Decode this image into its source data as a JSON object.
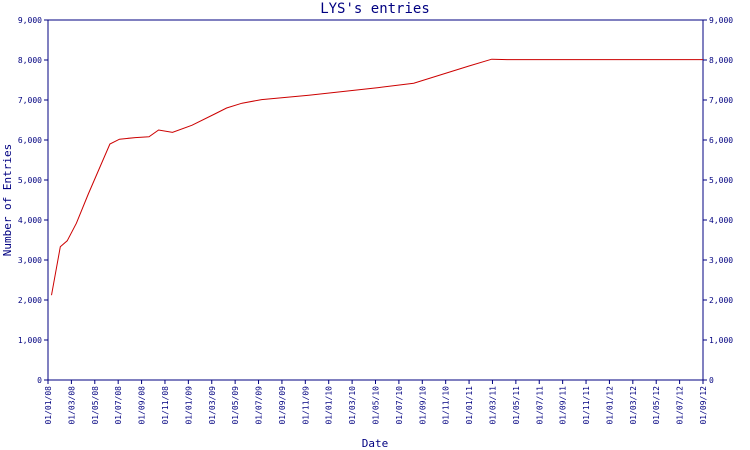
{
  "chart_data": {
    "type": "line",
    "title": "LYS's entries",
    "xlabel": "Date",
    "ylabel": "Number of Entries",
    "x_tick_labels": [
      "01/01/08",
      "01/03/08",
      "01/05/08",
      "01/07/08",
      "01/09/08",
      "01/11/08",
      "01/01/09",
      "01/03/09",
      "01/05/09",
      "01/07/09",
      "01/09/09",
      "01/11/09",
      "01/01/10",
      "01/03/10",
      "01/05/10",
      "01/07/10",
      "01/09/10",
      "01/11/10",
      "01/01/11",
      "01/03/11",
      "01/05/11",
      "01/07/11",
      "01/09/11",
      "01/11/11",
      "01/01/12",
      "01/03/12",
      "01/05/12",
      "01/07/12",
      "01/09/12"
    ],
    "y_tick_labels": [
      "0",
      "1,000",
      "2,000",
      "3,000",
      "4,000",
      "5,000",
      "6,000",
      "7,000",
      "8,000",
      "9,000"
    ],
    "y_tick_labels_right": [
      "0",
      "1,000",
      "2,000",
      "3,000",
      "4,000",
      "5,000",
      "6,000",
      "7,000",
      "8,000",
      "9,000"
    ],
    "ylim": [
      0,
      9000
    ],
    "xlim": [
      "2008-01-01",
      "2012-09-01"
    ],
    "grid": false,
    "line_color": "#cc0000",
    "axis_color": "#000080",
    "series": [
      {
        "x": [
          "2008-01-10",
          "2008-02-02",
          "2008-02-20",
          "2008-03-15",
          "2008-04-15",
          "2008-06-10",
          "2008-07-05",
          "2008-08-15",
          "2008-09-20",
          "2008-10-15",
          "2008-11-20",
          "2009-01-10",
          "2009-03-10",
          "2009-04-10",
          "2009-05-20",
          "2009-07-10",
          "2009-11-10",
          "2010-05-10",
          "2010-08-10",
          "2011-01-01",
          "2011-03-01",
          "2011-04-10",
          "2011-09-01",
          "2012-01-01",
          "2012-09-01"
        ],
        "y": [
          2120,
          3330,
          3480,
          3920,
          4650,
          5900,
          6020,
          6060,
          6080,
          6250,
          6190,
          6370,
          6650,
          6800,
          6920,
          7010,
          7120,
          7310,
          7420,
          7850,
          8020,
          8010,
          8010,
          8010,
          8010
        ]
      }
    ]
  }
}
